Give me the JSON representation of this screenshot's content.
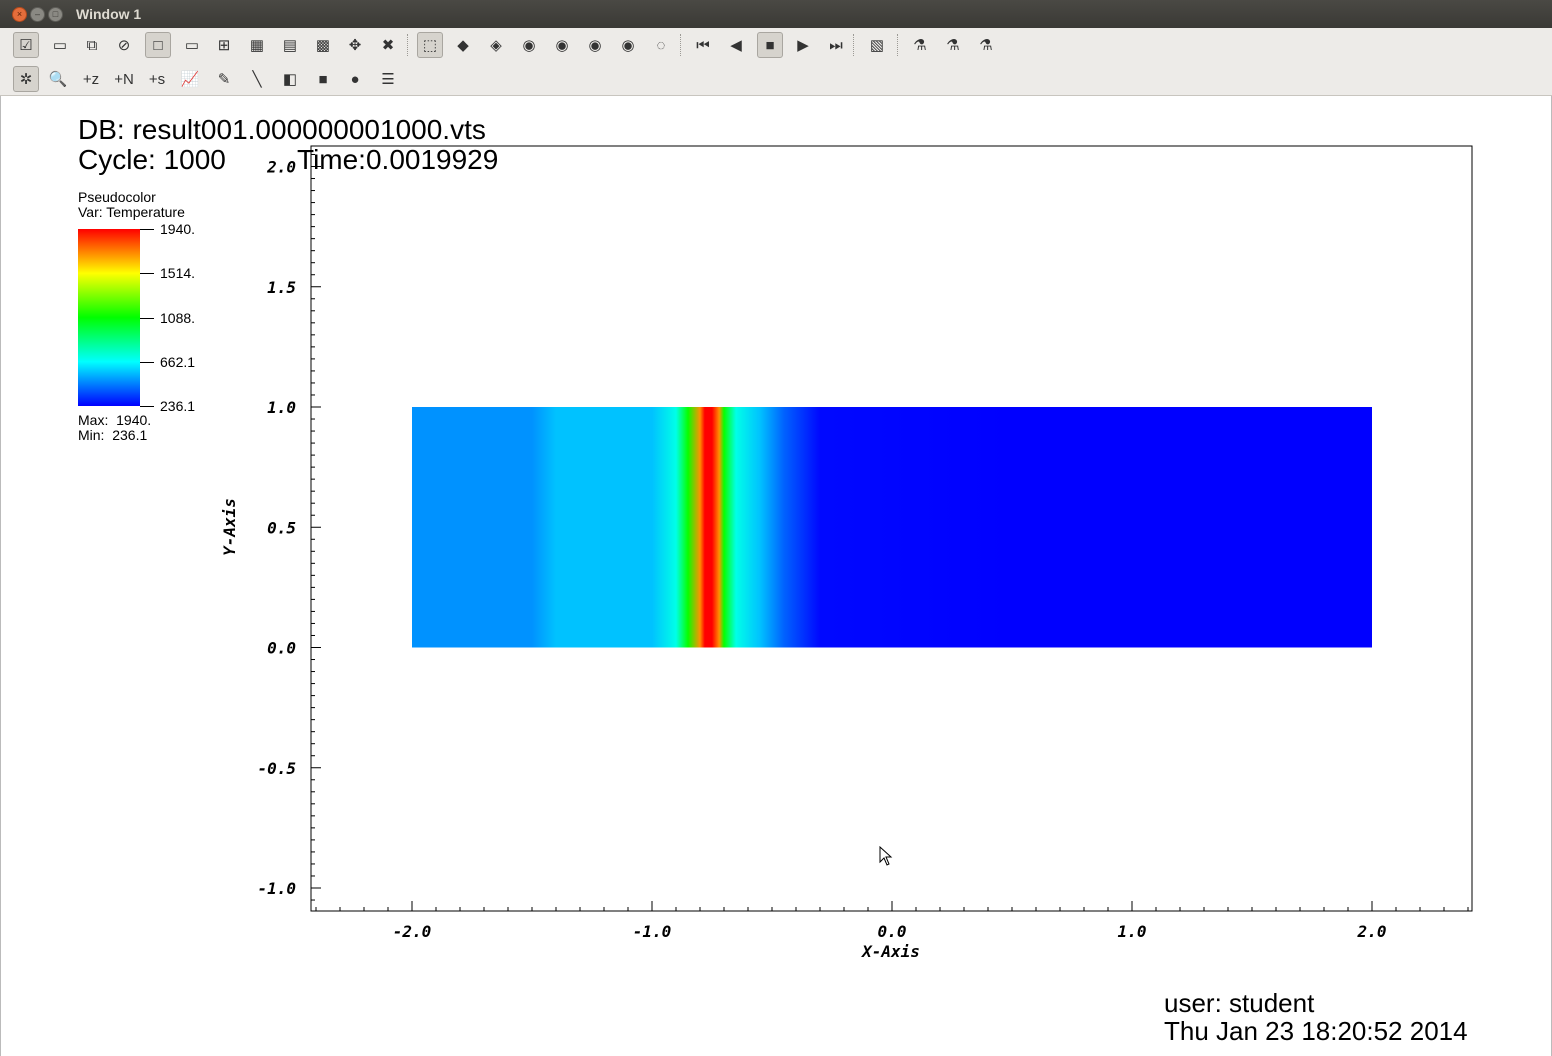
{
  "window": {
    "title": "Window 1"
  },
  "toolbar1": [
    {
      "name": "active-window-button",
      "glyph": "☑"
    },
    {
      "name": "new-window-button",
      "glyph": "▭"
    },
    {
      "name": "clone-window-button",
      "glyph": "⧉"
    },
    {
      "name": "delete-window-button",
      "glyph": "⊘"
    },
    {
      "name": "layout-1x1-button",
      "glyph": "□"
    },
    {
      "name": "layout-1x2-button",
      "glyph": "▭"
    },
    {
      "name": "layout-2x2-button",
      "glyph": "⊞"
    },
    {
      "name": "layout-2x3-button",
      "glyph": "▦"
    },
    {
      "name": "layout-2x4-button",
      "glyph": "▤"
    },
    {
      "name": "layout-3x3-button",
      "glyph": "▩"
    },
    {
      "name": "lock-view-button",
      "glyph": "✥"
    },
    {
      "name": "lock-time-button",
      "glyph": "✖"
    },
    {
      "name": "view-3d-button",
      "glyph": "⬚"
    },
    {
      "name": "view-1-button",
      "glyph": "◆"
    },
    {
      "name": "view-2-button",
      "glyph": "◈"
    },
    {
      "name": "camera-1-button",
      "glyph": "◉"
    },
    {
      "name": "camera-2-button",
      "glyph": "◉"
    },
    {
      "name": "camera-3-button",
      "glyph": "◉"
    },
    {
      "name": "camera-4-button",
      "glyph": "◉"
    },
    {
      "name": "camera-5-button",
      "glyph": "◌"
    },
    {
      "name": "rewind-button",
      "glyph": "⏮"
    },
    {
      "name": "step-back-button",
      "glyph": "◀"
    },
    {
      "name": "stop-button",
      "glyph": "■"
    },
    {
      "name": "play-button",
      "glyph": "▶"
    },
    {
      "name": "step-forward-button",
      "glyph": "⏭"
    },
    {
      "name": "annotation-button",
      "glyph": "▧"
    },
    {
      "name": "pick-1-button",
      "glyph": "⚗"
    },
    {
      "name": "pick-2-button",
      "glyph": "⚗"
    },
    {
      "name": "pick-3-button",
      "glyph": "⚗"
    }
  ],
  "toolbar2": [
    {
      "name": "navigate-mode-button",
      "glyph": "✲"
    },
    {
      "name": "zoom-mode-button",
      "glyph": "🔍"
    },
    {
      "name": "zone-pick-button",
      "glyph": "+z"
    },
    {
      "name": "node-pick-button",
      "glyph": "+N"
    },
    {
      "name": "spreadsheet-pick-button",
      "glyph": "+s"
    },
    {
      "name": "curve-pick-button",
      "glyph": "📈"
    },
    {
      "name": "line-pick-button",
      "glyph": "✎"
    },
    {
      "name": "lineout-button",
      "glyph": "╲"
    },
    {
      "name": "plane-tool-button",
      "glyph": "◧"
    },
    {
      "name": "box-tool-button",
      "glyph": "■"
    },
    {
      "name": "sphere-tool-button",
      "glyph": "●"
    },
    {
      "name": "sliders-button",
      "glyph": "☰"
    }
  ],
  "db": {
    "name": "DB: result001.000000001000.vts",
    "cycle": "Cycle: 1000",
    "time": "Time:0.0019929"
  },
  "legend": {
    "plot_type": "Pseudocolor",
    "variable": "Var: Temperature",
    "ticks": [
      "1940.",
      "1514.",
      "1088.",
      "662.1",
      "236.1"
    ],
    "max": "Max:  1940.",
    "min": "Min:  236.1"
  },
  "chart_data": {
    "type": "heatmap",
    "xlabel": "X-Axis",
    "ylabel": "Y-Axis",
    "xlim": [
      -2.4,
      2.4
    ],
    "ylim": [
      -1.1,
      2.1
    ],
    "x_ticks": [
      "-2.0",
      "-1.0",
      "0.0",
      "1.0",
      "2.0"
    ],
    "y_ticks": [
      "-1.0",
      "-0.5",
      "0.0",
      "0.5",
      "1.0",
      "1.5",
      "2.0"
    ],
    "x_tick_values": [
      -2.0,
      -1.0,
      0.0,
      1.0,
      2.0
    ],
    "y_tick_values": [
      -1.0,
      -0.5,
      0.0,
      0.5,
      1.0,
      1.5,
      2.0
    ],
    "domain": {
      "x": [
        -2.0,
        2.0
      ],
      "y": [
        0.0,
        1.0
      ]
    },
    "color_range": [
      236.1,
      1940.0
    ],
    "temperature_profile_x": [
      -2.0,
      -1.5,
      -1.4,
      -1.0,
      -0.9,
      -0.85,
      -0.8,
      -0.78,
      -0.75,
      -0.72,
      -0.7,
      -0.65,
      -0.55,
      -0.45,
      -0.3,
      0.5,
      1.0,
      2.0
    ],
    "temperature_profile_value": [
      480,
      480,
      560,
      560,
      700,
      1100,
      1700,
      1940,
      1940,
      1700,
      1100,
      700,
      560,
      400,
      250,
      236.1,
      236.1,
      236.1
    ]
  },
  "footer": {
    "user": "user: student",
    "date": "Thu Jan 23 18:20:52 2014"
  }
}
